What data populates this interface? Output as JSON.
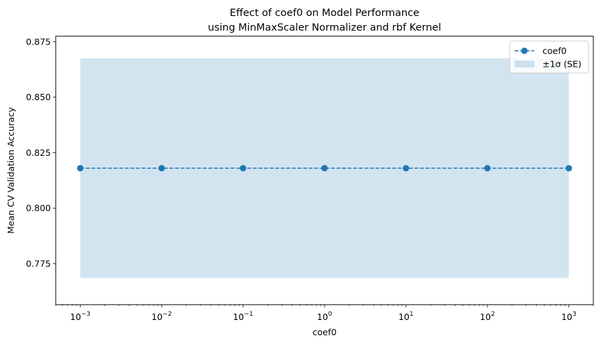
{
  "chart_data": {
    "type": "line",
    "title_line1": "Effect of coef0 on Model Performance",
    "title_line2": "using MinMaxScaler Normalizer and rbf Kernel",
    "xlabel": "coef0",
    "ylabel": "Mean CV Validation Accuracy",
    "x_scale": "log",
    "xlim": [
      0.0005,
      2000
    ],
    "ylim": [
      0.7565,
      0.8775
    ],
    "x_ticks": [
      {
        "value": 0.001,
        "base": "10",
        "exp": "−3"
      },
      {
        "value": 0.01,
        "base": "10",
        "exp": "−2"
      },
      {
        "value": 0.1,
        "base": "10",
        "exp": "−1"
      },
      {
        "value": 1,
        "base": "10",
        "exp": "0"
      },
      {
        "value": 10,
        "base": "10",
        "exp": "1"
      },
      {
        "value": 100,
        "base": "10",
        "exp": "2"
      },
      {
        "value": 1000,
        "base": "10",
        "exp": "3"
      }
    ],
    "y_ticks": [
      {
        "value": 0.775,
        "label": "0.775"
      },
      {
        "value": 0.8,
        "label": "0.800"
      },
      {
        "value": 0.825,
        "label": "0.825"
      },
      {
        "value": 0.85,
        "label": "0.850"
      },
      {
        "value": 0.875,
        "label": "0.875"
      }
    ],
    "grid": false,
    "legend_position": "top-right",
    "series": [
      {
        "name": "coef0",
        "x": [
          0.001,
          0.01,
          0.1,
          1,
          10,
          100,
          1000
        ],
        "y": [
          0.818,
          0.818,
          0.818,
          0.818,
          0.818,
          0.818,
          0.818
        ],
        "color": "#1f77b4",
        "line_style": "dashed",
        "marker": "circle"
      }
    ],
    "band": {
      "name": "±1σ (SE)",
      "lower": 0.7685,
      "upper": 0.8675,
      "color": "#1f77b4",
      "opacity": 0.2
    }
  }
}
